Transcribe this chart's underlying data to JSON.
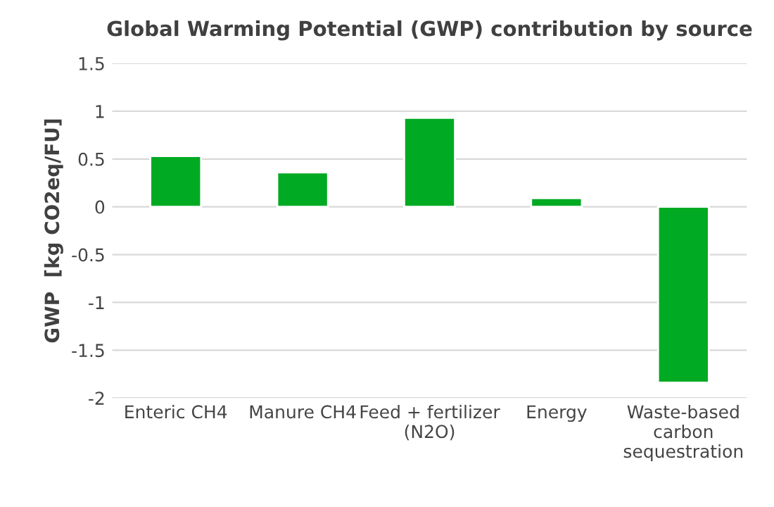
{
  "chart_data": {
    "type": "bar",
    "title": "Global Warming Potential (GWP) contribution by source",
    "ylabel": "GWP  [kg CO2eq/FU]",
    "categories": [
      "Enteric CH4",
      "Manure CH4",
      "Feed + fertilizer\n(N2O)",
      "Energy",
      "Waste-based\ncarbon\nsequestration"
    ],
    "values": [
      0.53,
      0.36,
      0.93,
      0.09,
      -1.84
    ],
    "color": "#00aa22",
    "ylim": [
      -2,
      1.5
    ],
    "yticks": [
      -2,
      {
        "value": -1.5,
        "label": "-1.5"
      },
      {
        "value": -1,
        "label": "-1"
      },
      {
        "value": -0.5,
        "label": "-0.5"
      },
      0,
      0.5,
      1,
      1.5
    ],
    "grid": "y"
  }
}
